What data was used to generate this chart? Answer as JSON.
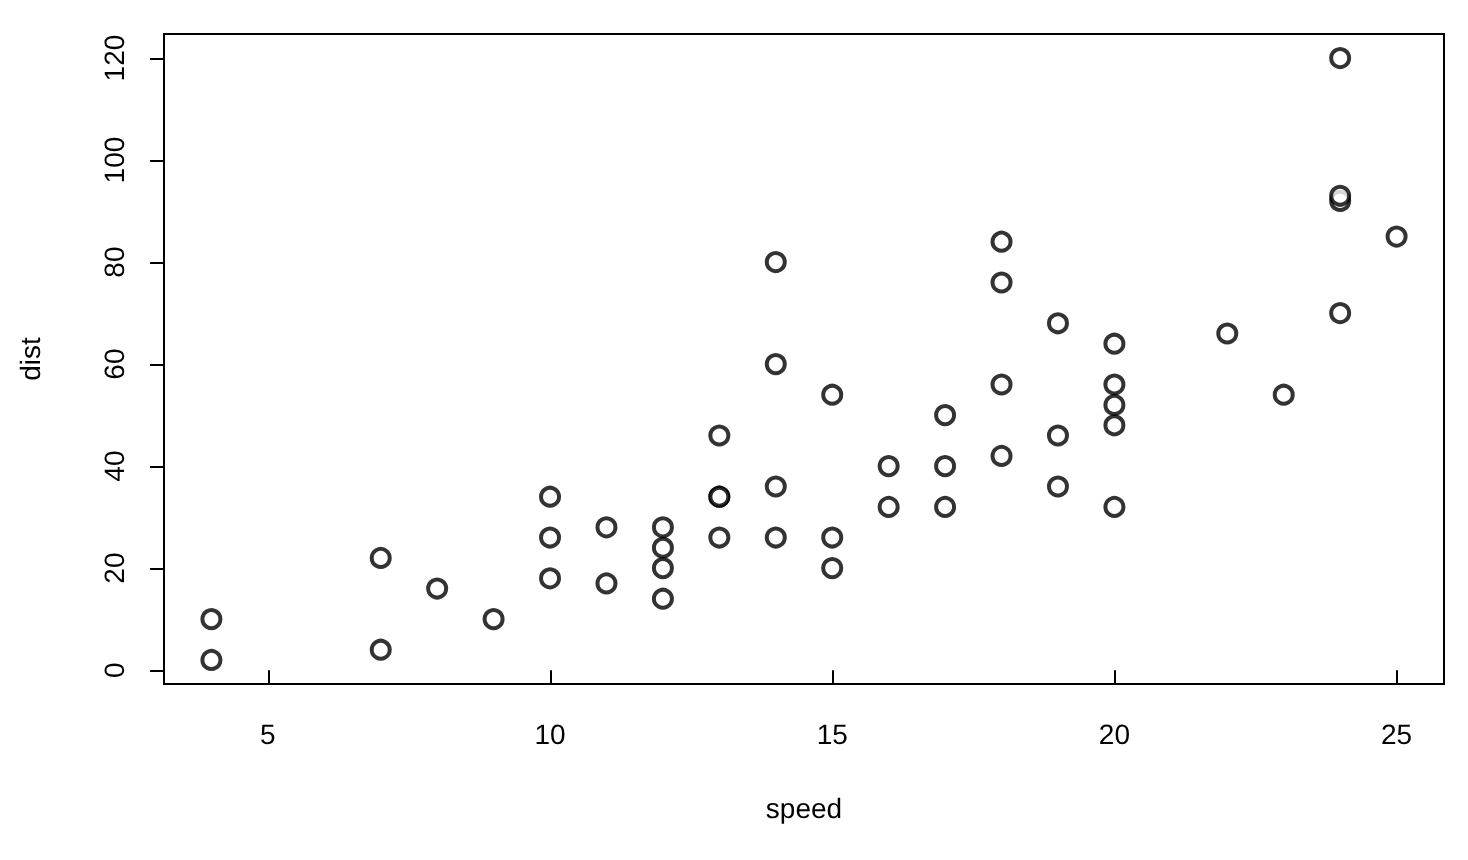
{
  "chart_data": {
    "type": "scatter",
    "xlabel": "speed",
    "ylabel": "dist",
    "x": [
      4,
      4,
      7,
      7,
      8,
      9,
      10,
      10,
      10,
      11,
      11,
      12,
      12,
      12,
      12,
      13,
      13,
      13,
      13,
      14,
      14,
      14,
      14,
      15,
      15,
      15,
      16,
      16,
      17,
      17,
      17,
      18,
      18,
      18,
      18,
      19,
      19,
      19,
      20,
      20,
      20,
      20,
      20,
      22,
      23,
      24,
      24,
      24,
      24,
      25
    ],
    "series": [
      {
        "color": "#000000",
        "values": [
          2,
          10,
          4,
          22,
          16,
          10,
          18,
          26,
          34,
          17,
          28,
          14,
          20,
          24,
          28,
          26,
          34,
          34,
          46,
          26,
          36,
          60,
          80,
          20,
          26,
          54,
          32,
          40,
          32,
          40,
          50,
          42,
          56,
          76,
          84,
          36,
          46,
          68,
          32,
          48,
          52,
          56,
          64,
          66,
          54,
          70,
          92,
          93,
          120,
          85
        ]
      }
    ],
    "xlim": [
      3.16,
      25.84
    ],
    "ylim": [
      -2.72,
      124.72
    ],
    "xticks": [
      5,
      10,
      15,
      20,
      25
    ],
    "yticks": [
      0,
      20,
      40,
      60,
      80,
      100,
      120
    ],
    "marker": "circle",
    "grid": false
  }
}
